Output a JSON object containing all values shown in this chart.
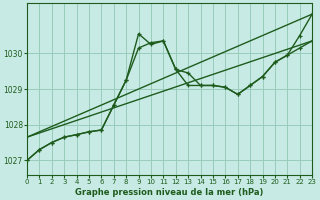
{
  "title": "Graphe pression niveau de la mer (hPa)",
  "bg_color": "#c8eae4",
  "grid_color": "#99ccbb",
  "line_color": "#1e5c1e",
  "x_min": 0,
  "x_max": 23,
  "y_min": 1026.6,
  "y_max": 1031.4,
  "yticks": [
    1027,
    1028,
    1029,
    1030
  ],
  "xticks": [
    0,
    1,
    2,
    3,
    4,
    5,
    6,
    7,
    8,
    9,
    10,
    11,
    12,
    13,
    14,
    15,
    16,
    17,
    18,
    19,
    20,
    21,
    22,
    23
  ],
  "line1_x": [
    0,
    1,
    2,
    3,
    4,
    5,
    6,
    7,
    8,
    9,
    10,
    11,
    12,
    13,
    14,
    15,
    16,
    17,
    18,
    19,
    20,
    21,
    22,
    23
  ],
  "line1_y": [
    1027.0,
    1027.3,
    1027.5,
    1027.65,
    1027.72,
    1027.8,
    1027.85,
    1028.55,
    1029.25,
    1030.15,
    1030.3,
    1030.35,
    1029.55,
    1029.1,
    1029.1,
    1029.1,
    1029.05,
    1028.85,
    1029.1,
    1029.35,
    1029.75,
    1029.95,
    1030.5,
    1031.1
  ],
  "line2_x": [
    0,
    1,
    2,
    3,
    4,
    5,
    6,
    7,
    8,
    9,
    10,
    11,
    12,
    13,
    14,
    15,
    16,
    17,
    18,
    19,
    20,
    21,
    22,
    23
  ],
  "line2_y": [
    1027.0,
    1027.3,
    1027.5,
    1027.65,
    1027.72,
    1027.8,
    1027.85,
    1028.55,
    1029.25,
    1030.55,
    1030.25,
    1030.35,
    1029.55,
    1029.45,
    1029.1,
    1029.1,
    1029.05,
    1028.85,
    1029.1,
    1029.35,
    1029.75,
    1029.95,
    1030.15,
    1030.35
  ],
  "line3_x": [
    0,
    23
  ],
  "line3_y": [
    1027.65,
    1030.35
  ],
  "line4_x": [
    0,
    23
  ],
  "line4_y": [
    1027.65,
    1031.1
  ],
  "marker_size": 3.5,
  "linewidth": 1.0
}
